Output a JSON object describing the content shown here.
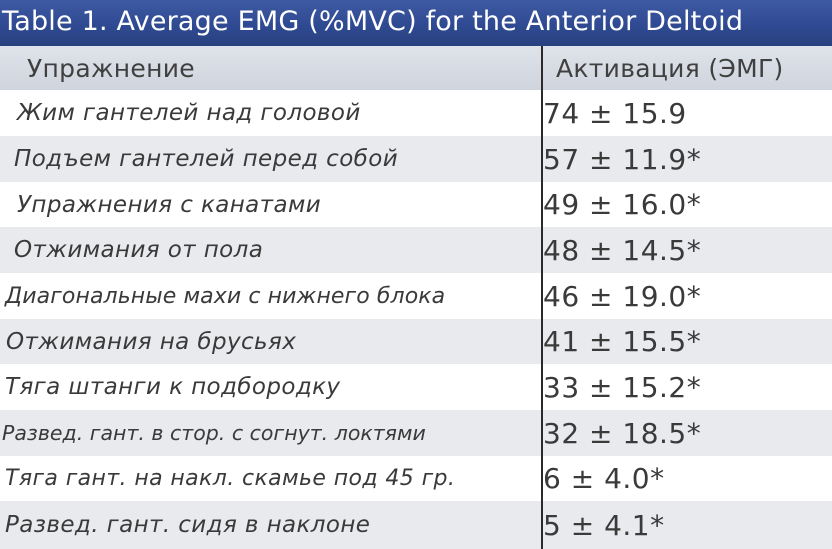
{
  "title": "Table 1. Average EMG (%MVC) for the Anterior Deltoid",
  "header": {
    "exercise": "Упражнение",
    "activation": "Активация (ЭМГ)"
  },
  "rows": [
    {
      "exercise": "Жим гантелей над головой",
      "value": "74 ± 15.9"
    },
    {
      "exercise": "Подъем гантелей перед собой",
      "value": "57 ± 11.9*"
    },
    {
      "exercise": "Упражнения с канатами",
      "value": "49 ± 16.0*"
    },
    {
      "exercise": "Отжимания от пола",
      "value": "48 ± 14.5*"
    },
    {
      "exercise": "Диагональные махи с нижнего блока",
      "value": "46 ± 19.0*"
    },
    {
      "exercise": "Отжимания на брусьях",
      "value": "41 ± 15.5*"
    },
    {
      "exercise": "Тяга штанги к подбородку",
      "value": "33 ± 15.2*"
    },
    {
      "exercise": "Развед. гант. в стор. с согнут. локтями",
      "value": "32 ± 18.5*"
    },
    {
      "exercise": "Тяга гант. на накл. скамье под 45 гр.",
      "value": "6 ± 4.0*"
    },
    {
      "exercise": "Развед. гант. сидя в наклоне",
      "value": "5 ± 4.1*"
    }
  ]
}
